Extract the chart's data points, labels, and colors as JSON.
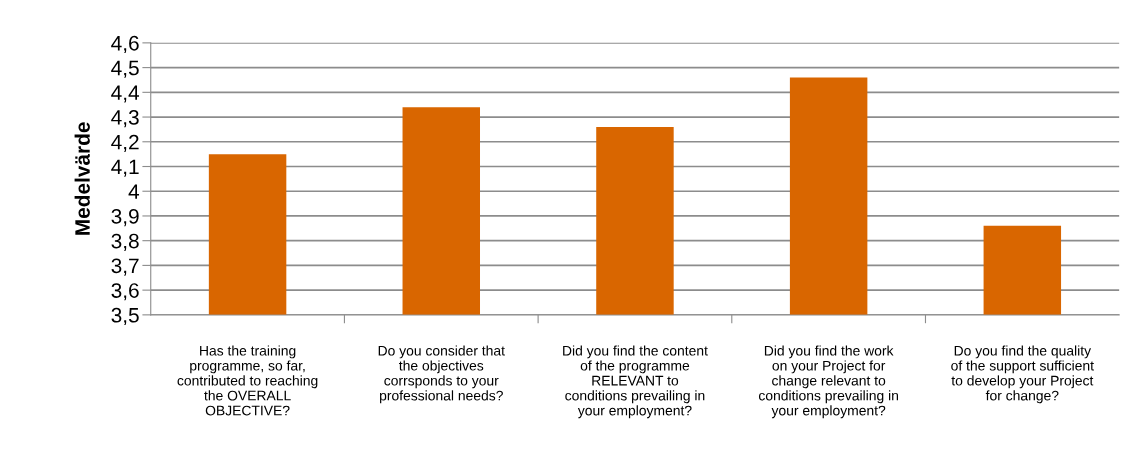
{
  "chart_data": {
    "type": "bar",
    "ylabel": "Medelvärde",
    "categories": [
      "Has the training\nprogramme, so far,\ncontributed to reaching\nthe OVERALL\nOBJECTIVE?",
      "Do you consider that\nthe objectives\ncorrsponds to your\nprofessional needs?",
      "Did you find the content\nof the programme\nRELEVANT to\nconditions prevailing in\nyour employment?",
      "Did you find the work\non your Project for\nchange relevant to\nconditions prevailing in\nyour employment?",
      "Do you find the quality\nof the support sufficient\nto develop your Project\nfor change?"
    ],
    "values": [
      4.15,
      4.34,
      4.26,
      4.46,
      3.86
    ],
    "color": "#d96600",
    "ylim": [
      3.5,
      4.6
    ],
    "yticks": [
      {
        "value": 3.5,
        "label": "3,5"
      },
      {
        "value": 3.6,
        "label": "3,6"
      },
      {
        "value": 3.7,
        "label": "3,7"
      },
      {
        "value": 3.8,
        "label": "3,8"
      },
      {
        "value": 3.9,
        "label": "3,9"
      },
      4,
      {
        "value": 4.1,
        "label": "4,1"
      },
      {
        "value": 4.2,
        "label": "4,2"
      },
      {
        "value": 4.3,
        "label": "4,3"
      },
      {
        "value": 4.4,
        "label": "4,4"
      },
      {
        "value": 4.5,
        "label": "4,5"
      },
      {
        "value": 4.6,
        "label": "4,6"
      }
    ],
    "grid": "y"
  }
}
